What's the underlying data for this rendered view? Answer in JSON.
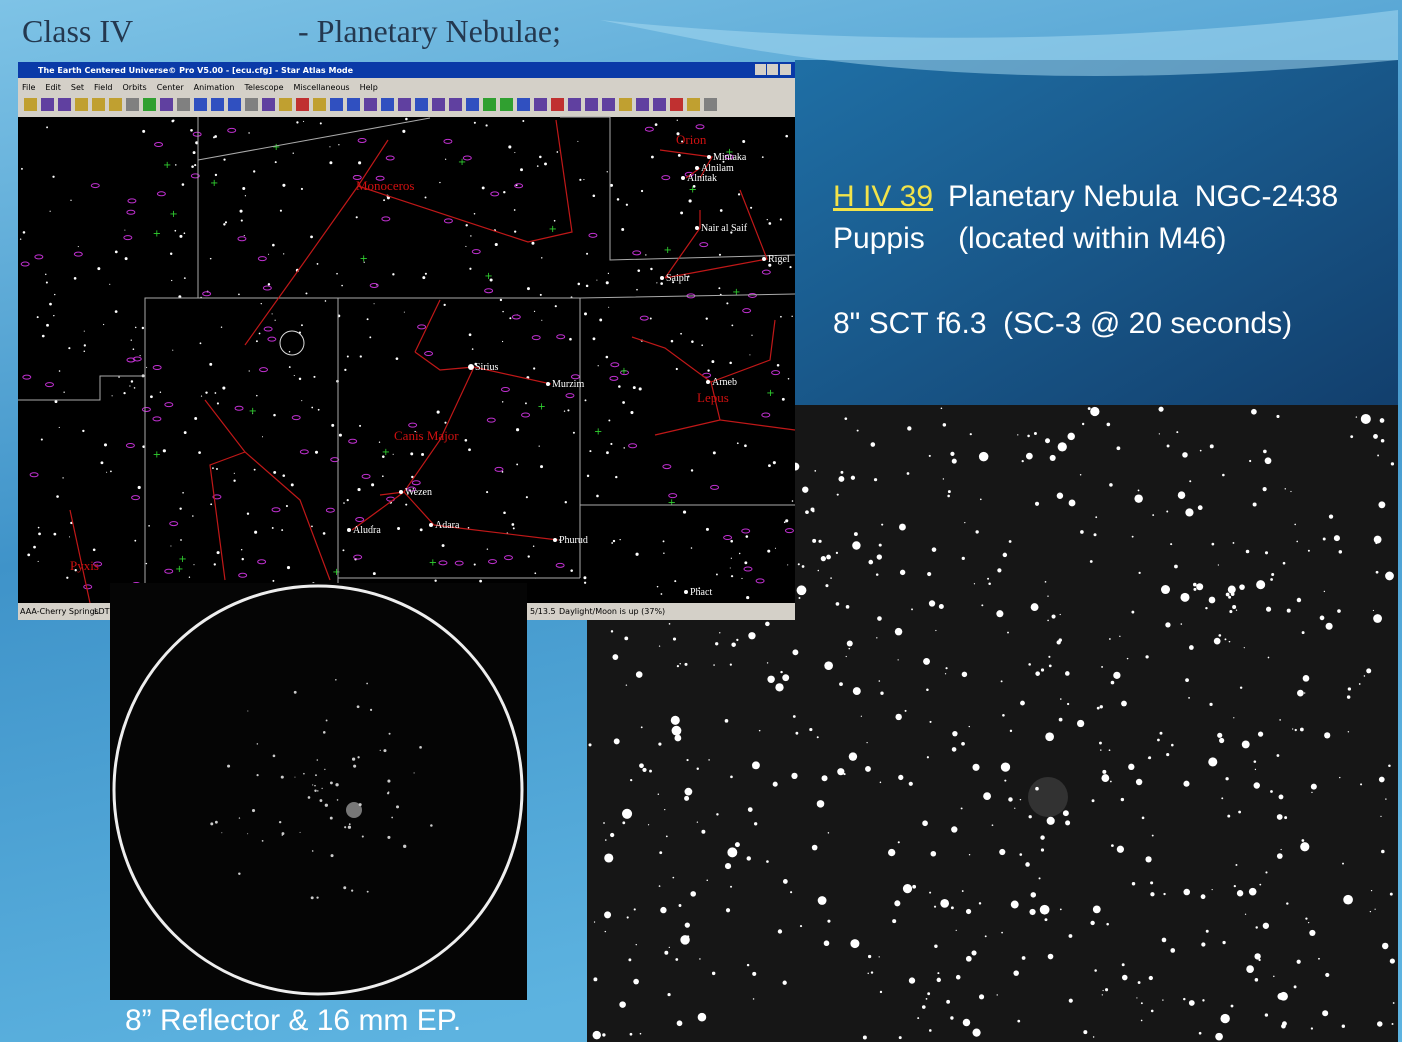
{
  "slide": {
    "title": "Class IV",
    "subtitle": "- Planetary Nebulae;",
    "designation": "H IV 39",
    "object": "Planetary Nebula  NGC-2438",
    "location": "Puppis    (located within M46)",
    "equipment": "8\" SCT f6.3  (SC-3 @ 20 seconds)",
    "caption": "8” Reflector & 16 mm EP."
  },
  "window": {
    "title": "The Earth Centered Universe© Pro V5.00 - [ecu.cfg] - Star Atlas Mode",
    "menu": [
      "File",
      "Edit",
      "Set",
      "Field",
      "Orbits",
      "Center",
      "Animation",
      "Telescope",
      "Miscellaneous",
      "Help"
    ],
    "status": [
      "AAA-Cherry Springs",
      "LDT",
      "5/13.5",
      "Daylight/Moon is up (37%)"
    ]
  },
  "map": {
    "constellations": [
      "Orion",
      "Monoceros",
      "Lepus",
      "Canis Major",
      "Pyxis"
    ],
    "stars": [
      "Mintaka",
      "Alnilam",
      "Alnitak",
      "Nair al Saif",
      "Saiph",
      "Rigel",
      "Sirius",
      "Murzim",
      "Arneb",
      "Wezen",
      "Aludra",
      "Adara",
      "Phurud",
      "Phact"
    ]
  }
}
